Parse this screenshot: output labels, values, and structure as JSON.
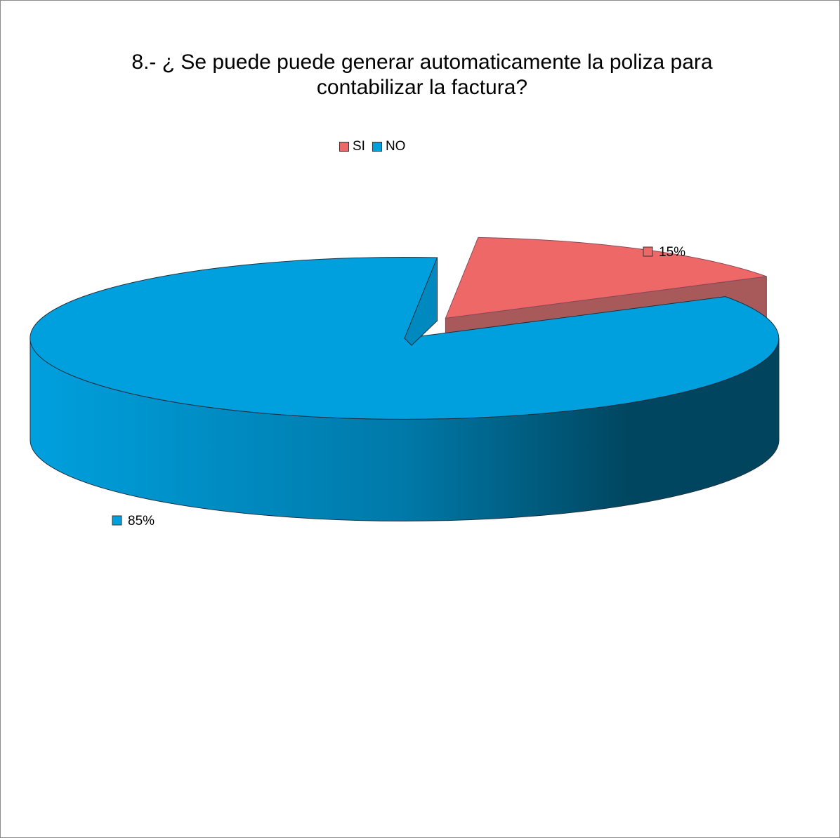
{
  "chart_data": {
    "type": "pie",
    "style": "3d-exploded",
    "title_lines": [
      "8.- ¿ Se puede puede generar automaticamente la poliza para",
      "contabilizar la factura?"
    ],
    "categories": [
      "SI",
      "NO"
    ],
    "values": [
      15,
      85
    ],
    "data_labels": [
      "15%",
      "85%"
    ],
    "colors": [
      "#EE6868",
      "#00A0DE"
    ],
    "legend_position": "top"
  }
}
